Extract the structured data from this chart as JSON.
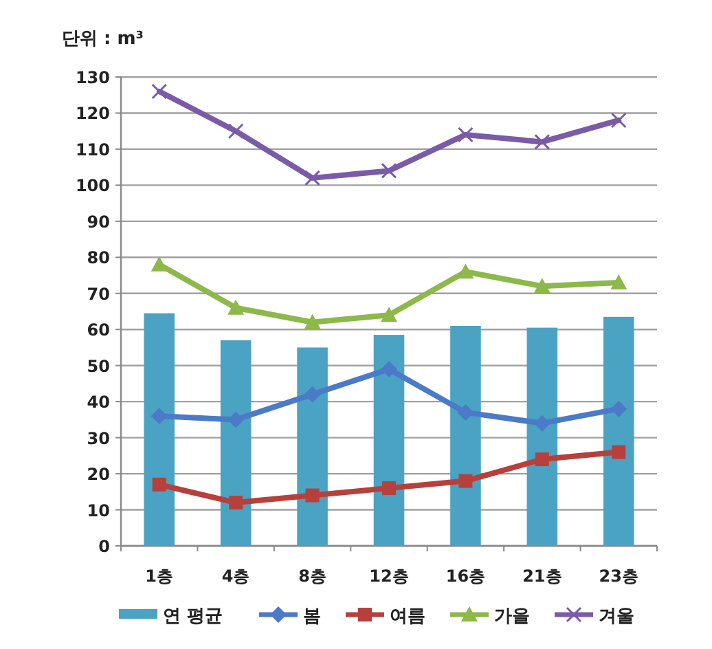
{
  "chart_data": {
    "type": "bar",
    "ylabel": "단위 : m³",
    "categories": [
      "1층",
      "4층",
      "8층",
      "12층",
      "16층",
      "21층",
      "23층"
    ],
    "series": [
      {
        "name": "연 평균",
        "color": "#4ba3c3",
        "values": [
          64.5,
          57,
          55,
          58.5,
          61,
          60.5,
          63.5
        ]
      },
      {
        "name": "봄",
        "type": "line",
        "marker": "diamond",
        "color": "#4a7ac8",
        "values": [
          36,
          35,
          42,
          49,
          37,
          34,
          38
        ]
      },
      {
        "name": "여름",
        "type": "line",
        "marker": "square",
        "color": "#b7403c",
        "values": [
          17,
          12,
          14,
          16,
          18,
          24,
          26
        ]
      },
      {
        "name": "가을",
        "type": "line",
        "marker": "triangle",
        "color": "#8db84a",
        "values": [
          78,
          66,
          62,
          64,
          76,
          72,
          73
        ]
      },
      {
        "name": "겨울",
        "type": "line",
        "marker": "cross",
        "color": "#7a5ba8",
        "values": [
          126,
          115,
          102,
          104,
          114,
          112,
          118
        ]
      }
    ],
    "ylim": [
      0,
      130
    ],
    "yticks": [
      0,
      10,
      20,
      30,
      40,
      50,
      60,
      70,
      80,
      90,
      100,
      110,
      120,
      130
    ],
    "grid": "y",
    "legend": "bottom"
  }
}
